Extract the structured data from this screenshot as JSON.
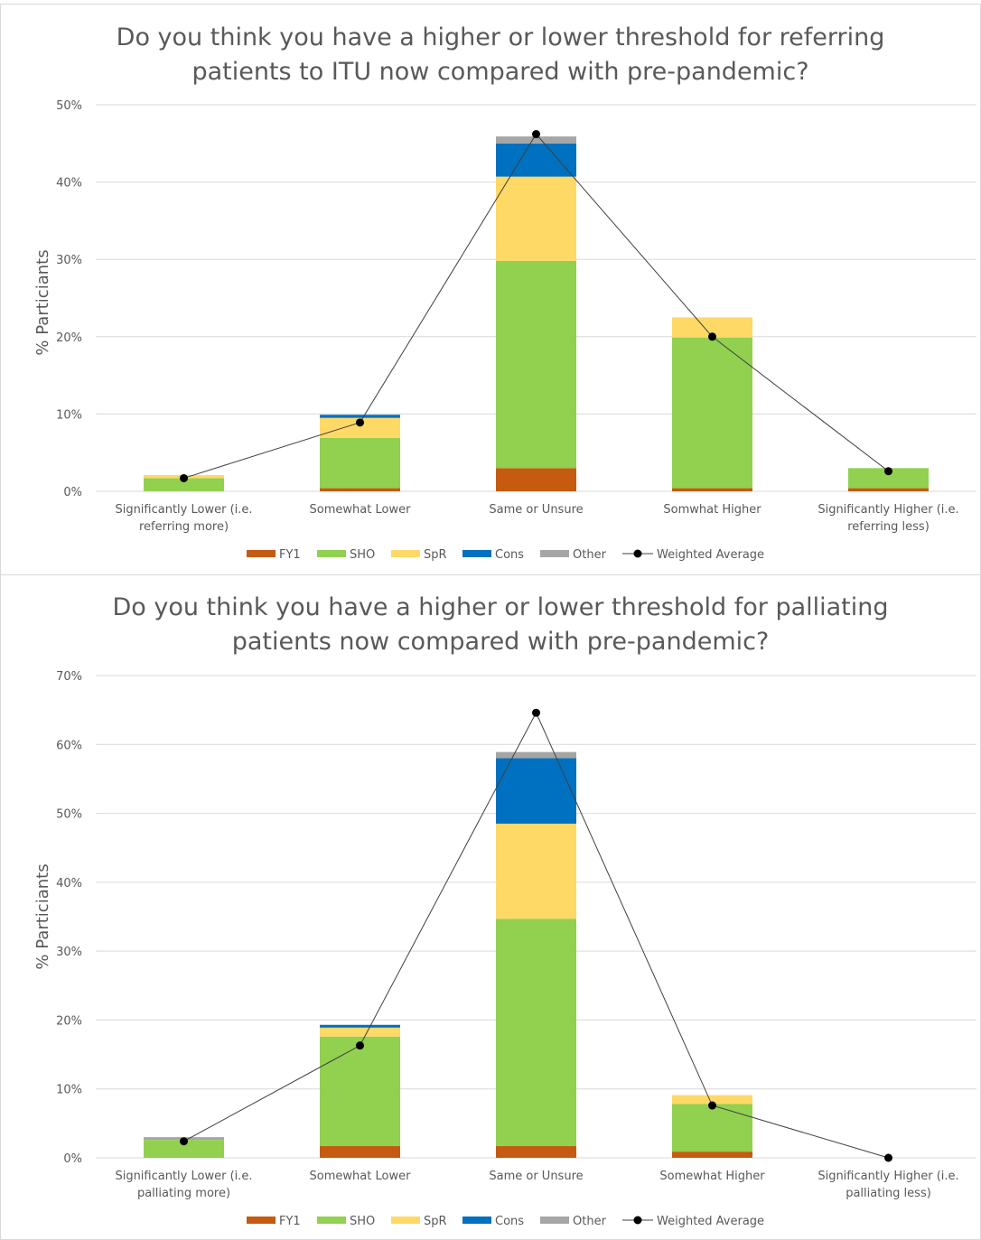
{
  "chart_data": [
    {
      "type": "bar",
      "stacked": true,
      "title": "Do you think you have a higher or lower threshold for referring patients to ITU now compared with pre-pandemic?",
      "title_lines": [
        "Do you think you have a higher or lower threshold for referring",
        "patients to ITU now compared with pre-pandemic?"
      ],
      "ylabel": "% Particiants",
      "xlabel": "",
      "ylim": [
        0,
        50
      ],
      "yticks": [
        "0%",
        "10%",
        "20%",
        "30%",
        "40%",
        "50%"
      ],
      "grid": true,
      "legend_position": "bottom",
      "categories": [
        [
          "Significantly Lower (i.e.",
          "referring more)"
        ],
        [
          "Somewhat Lower"
        ],
        [
          "Same or Unsure"
        ],
        [
          "Somwhat Higher"
        ],
        [
          "Significantly Higher (i.e.",
          "referring less)"
        ]
      ],
      "series": [
        {
          "name": "FY1",
          "color": "#c55a11",
          "values": [
            0,
            0.4,
            3.0,
            0.4,
            0.4
          ]
        },
        {
          "name": "SHO",
          "color": "#92d050",
          "values": [
            1.7,
            6.5,
            26.8,
            19.5,
            2.6
          ]
        },
        {
          "name": "SpR",
          "color": "#ffd966",
          "values": [
            0.4,
            2.6,
            10.9,
            2.6,
            0
          ]
        },
        {
          "name": "Cons",
          "color": "#0070c0",
          "values": [
            0,
            0.4,
            4.3,
            0,
            0
          ]
        },
        {
          "name": "Other",
          "color": "#a6a6a6",
          "values": [
            0,
            0,
            0.9,
            0,
            0
          ]
        }
      ],
      "line_series": {
        "name": "Weighted Average",
        "color": "#000000",
        "values": [
          1.7,
          8.9,
          46.2,
          20.0,
          2.6
        ]
      }
    },
    {
      "type": "bar",
      "stacked": true,
      "title": "Do you think you have a higher or lower threshold for palliating patients now compared with pre-pandemic?",
      "title_lines": [
        "Do you think you have a higher or lower threshold for palliating",
        "patients now compared with pre-pandemic?"
      ],
      "ylabel": "% Particiants",
      "xlabel": "",
      "ylim": [
        0,
        70
      ],
      "yticks": [
        "0%",
        "10%",
        "20%",
        "30%",
        "40%",
        "50%",
        "60%",
        "70%"
      ],
      "grid": true,
      "legend_position": "bottom",
      "categories": [
        [
          "Significantly Lower (i.e.",
          "palliating more)"
        ],
        [
          "Somewhat Lower"
        ],
        [
          "Same or Unsure"
        ],
        [
          "Somewhat Higher"
        ],
        [
          "Significantly Higher (i.e.",
          "palliating less)"
        ]
      ],
      "series": [
        {
          "name": "FY1",
          "color": "#c55a11",
          "values": [
            0,
            1.7,
            1.7,
            0.9,
            0
          ]
        },
        {
          "name": "SHO",
          "color": "#92d050",
          "values": [
            2.6,
            15.9,
            33.0,
            6.9,
            0
          ]
        },
        {
          "name": "SpR",
          "color": "#ffd966",
          "values": [
            0,
            1.3,
            13.8,
            1.3,
            0
          ]
        },
        {
          "name": "Cons",
          "color": "#0070c0",
          "values": [
            0,
            0.4,
            9.5,
            0,
            0
          ]
        },
        {
          "name": "Other",
          "color": "#a6a6a6",
          "values": [
            0.4,
            0,
            0.9,
            0,
            0
          ]
        }
      ],
      "line_series": {
        "name": "Weighted Average",
        "color": "#000000",
        "values": [
          2.4,
          16.3,
          64.6,
          7.6,
          0
        ]
      }
    }
  ]
}
